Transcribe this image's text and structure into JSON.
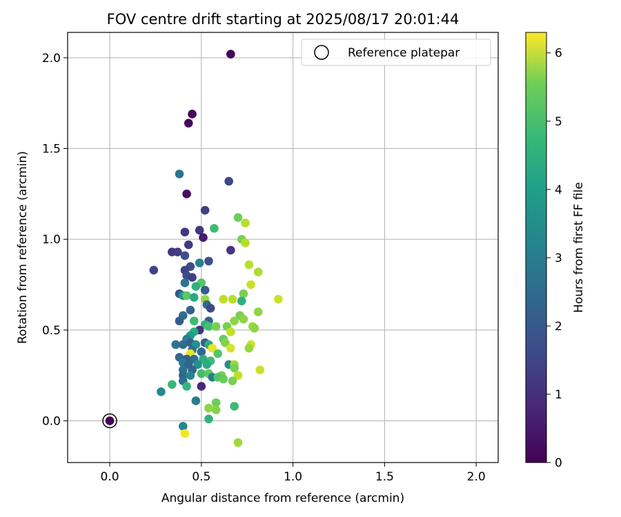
{
  "chart_data": {
    "type": "scatter",
    "title": "FOV centre drift starting at 2025/08/17 20:01:44",
    "xlabel": "Angular distance from reference (arcmin)",
    "ylabel": "Rotation from reference (arcmin)",
    "xlim": [
      -0.23,
      2.12
    ],
    "ylim": [
      -0.23,
      2.14
    ],
    "xticks": [
      0.0,
      0.5,
      1.0,
      1.5,
      2.0
    ],
    "xtick_labels": [
      "0.0",
      "0.5",
      "1.0",
      "1.5",
      "2.0"
    ],
    "yticks": [
      0.0,
      0.5,
      1.0,
      1.5,
      2.0
    ],
    "ytick_labels": [
      "0.0",
      "0.5",
      "1.0",
      "1.5",
      "2.0"
    ],
    "grid": true,
    "legend": {
      "placement": "top-right",
      "entries": [
        "Reference platepar"
      ]
    },
    "reference_point": {
      "x": 0.0,
      "y": 0.0,
      "label": "Reference platepar"
    },
    "colorbar": {
      "label": "Hours from first FF file",
      "range": [
        0,
        6.3
      ],
      "ticks": [
        0,
        1,
        2,
        3,
        4,
        5,
        6
      ],
      "tick_labels": [
        "0",
        "1",
        "2",
        "3",
        "4",
        "5",
        "6"
      ],
      "colormap": "viridis"
    },
    "points": [
      {
        "x": 0.66,
        "y": 2.02,
        "c": 0.1
      },
      {
        "x": 0.45,
        "y": 1.69,
        "c": 0.1
      },
      {
        "x": 0.43,
        "y": 1.64,
        "c": 0.1
      },
      {
        "x": 0.38,
        "y": 1.36,
        "c": 2.4
      },
      {
        "x": 0.42,
        "y": 1.25,
        "c": 0.2
      },
      {
        "x": 0.65,
        "y": 1.32,
        "c": 1.4
      },
      {
        "x": 0.52,
        "y": 1.16,
        "c": 1.2
      },
      {
        "x": 0.7,
        "y": 1.12,
        "c": 4.9
      },
      {
        "x": 0.74,
        "y": 1.09,
        "c": 5.6
      },
      {
        "x": 0.57,
        "y": 1.06,
        "c": 4.3
      },
      {
        "x": 0.41,
        "y": 1.04,
        "c": 1.0
      },
      {
        "x": 0.49,
        "y": 1.05,
        "c": 1.0
      },
      {
        "x": 0.51,
        "y": 1.01,
        "c": 0.5
      },
      {
        "x": 0.72,
        "y": 1.0,
        "c": 5.0
      },
      {
        "x": 0.74,
        "y": 0.98,
        "c": 5.6
      },
      {
        "x": 0.43,
        "y": 0.97,
        "c": 1.1
      },
      {
        "x": 0.34,
        "y": 0.93,
        "c": 1.0
      },
      {
        "x": 0.37,
        "y": 0.93,
        "c": 1.1
      },
      {
        "x": 0.66,
        "y": 0.94,
        "c": 1.0
      },
      {
        "x": 0.41,
        "y": 0.91,
        "c": 1.6
      },
      {
        "x": 0.54,
        "y": 0.88,
        "c": 1.6
      },
      {
        "x": 0.49,
        "y": 0.87,
        "c": 2.8
      },
      {
        "x": 0.76,
        "y": 0.86,
        "c": 5.6
      },
      {
        "x": 0.44,
        "y": 0.85,
        "c": 1.5
      },
      {
        "x": 0.41,
        "y": 0.83,
        "c": 1.3
      },
      {
        "x": 0.24,
        "y": 0.83,
        "c": 1.3
      },
      {
        "x": 0.81,
        "y": 0.82,
        "c": 5.5
      },
      {
        "x": 0.42,
        "y": 0.8,
        "c": 1.5
      },
      {
        "x": 0.45,
        "y": 0.79,
        "c": 1.2
      },
      {
        "x": 0.41,
        "y": 0.76,
        "c": 2.4
      },
      {
        "x": 0.5,
        "y": 0.76,
        "c": 4.6
      },
      {
        "x": 0.77,
        "y": 0.75,
        "c": 5.8
      },
      {
        "x": 0.47,
        "y": 0.74,
        "c": 4.0
      },
      {
        "x": 0.52,
        "y": 0.72,
        "c": 1.8
      },
      {
        "x": 0.38,
        "y": 0.7,
        "c": 1.7
      },
      {
        "x": 0.4,
        "y": 0.69,
        "c": 3.3
      },
      {
        "x": 0.42,
        "y": 0.69,
        "c": 4.7
      },
      {
        "x": 0.46,
        "y": 0.68,
        "c": 3.8
      },
      {
        "x": 0.73,
        "y": 0.7,
        "c": 5.0
      },
      {
        "x": 0.52,
        "y": 0.67,
        "c": 5.3
      },
      {
        "x": 0.62,
        "y": 0.67,
        "c": 5.7
      },
      {
        "x": 0.67,
        "y": 0.67,
        "c": 5.6
      },
      {
        "x": 0.92,
        "y": 0.67,
        "c": 5.8
      },
      {
        "x": 0.72,
        "y": 0.66,
        "c": 4.0
      },
      {
        "x": 0.53,
        "y": 0.64,
        "c": 2.1
      },
      {
        "x": 0.55,
        "y": 0.62,
        "c": 1.4
      },
      {
        "x": 0.44,
        "y": 0.61,
        "c": 2.0
      },
      {
        "x": 0.81,
        "y": 0.6,
        "c": 5.2
      },
      {
        "x": 0.71,
        "y": 0.58,
        "c": 5.0
      },
      {
        "x": 0.4,
        "y": 0.58,
        "c": 2.2
      },
      {
        "x": 0.38,
        "y": 0.55,
        "c": 1.8
      },
      {
        "x": 0.46,
        "y": 0.55,
        "c": 4.3
      },
      {
        "x": 0.54,
        "y": 0.55,
        "c": 2.0
      },
      {
        "x": 0.68,
        "y": 0.55,
        "c": 5.2
      },
      {
        "x": 0.73,
        "y": 0.56,
        "c": 5.2
      },
      {
        "x": 0.52,
        "y": 0.53,
        "c": 4.0
      },
      {
        "x": 0.54,
        "y": 0.52,
        "c": 4.4
      },
      {
        "x": 0.58,
        "y": 0.52,
        "c": 5.0
      },
      {
        "x": 0.64,
        "y": 0.52,
        "c": 5.0
      },
      {
        "x": 0.78,
        "y": 0.52,
        "c": 5.4
      },
      {
        "x": 0.79,
        "y": 0.51,
        "c": 5.2
      },
      {
        "x": 0.49,
        "y": 0.5,
        "c": 0.9
      },
      {
        "x": 0.46,
        "y": 0.49,
        "c": 3.8
      },
      {
        "x": 0.66,
        "y": 0.49,
        "c": 5.7
      },
      {
        "x": 0.44,
        "y": 0.47,
        "c": 3.5
      },
      {
        "x": 0.42,
        "y": 0.45,
        "c": 2.7
      },
      {
        "x": 0.62,
        "y": 0.45,
        "c": 4.8
      },
      {
        "x": 0.63,
        "y": 0.43,
        "c": 5.1
      },
      {
        "x": 0.77,
        "y": 0.42,
        "c": 5.8
      },
      {
        "x": 0.36,
        "y": 0.42,
        "c": 2.5
      },
      {
        "x": 0.4,
        "y": 0.42,
        "c": 2.2
      },
      {
        "x": 0.44,
        "y": 0.43,
        "c": 1.9
      },
      {
        "x": 0.47,
        "y": 0.42,
        "c": 3.2
      },
      {
        "x": 0.52,
        "y": 0.43,
        "c": 1.8
      },
      {
        "x": 0.54,
        "y": 0.42,
        "c": 3.9
      },
      {
        "x": 0.56,
        "y": 0.4,
        "c": 6.1
      },
      {
        "x": 0.66,
        "y": 0.4,
        "c": 5.9
      },
      {
        "x": 0.76,
        "y": 0.4,
        "c": 5.3
      },
      {
        "x": 0.45,
        "y": 0.39,
        "c": 2.4
      },
      {
        "x": 0.5,
        "y": 0.38,
        "c": 2.1
      },
      {
        "x": 0.44,
        "y": 0.37,
        "c": 6.1
      },
      {
        "x": 0.59,
        "y": 0.37,
        "c": 4.6
      },
      {
        "x": 0.38,
        "y": 0.35,
        "c": 2.2
      },
      {
        "x": 0.42,
        "y": 0.34,
        "c": 1.9
      },
      {
        "x": 0.46,
        "y": 0.34,
        "c": 2.3
      },
      {
        "x": 0.51,
        "y": 0.34,
        "c": 3.9
      },
      {
        "x": 0.55,
        "y": 0.33,
        "c": 4.3
      },
      {
        "x": 0.4,
        "y": 0.32,
        "c": 2.6
      },
      {
        "x": 0.43,
        "y": 0.31,
        "c": 2.0
      },
      {
        "x": 0.48,
        "y": 0.31,
        "c": 3.2
      },
      {
        "x": 0.53,
        "y": 0.31,
        "c": 3.9
      },
      {
        "x": 0.65,
        "y": 0.31,
        "c": 3.2
      },
      {
        "x": 0.68,
        "y": 0.31,
        "c": 5.4
      },
      {
        "x": 0.68,
        "y": 0.29,
        "c": 5.0
      },
      {
        "x": 0.4,
        "y": 0.28,
        "c": 2.4
      },
      {
        "x": 0.45,
        "y": 0.28,
        "c": 2.0
      },
      {
        "x": 0.5,
        "y": 0.26,
        "c": 4.4
      },
      {
        "x": 0.54,
        "y": 0.26,
        "c": 4.7
      },
      {
        "x": 0.61,
        "y": 0.25,
        "c": 5.0
      },
      {
        "x": 0.7,
        "y": 0.25,
        "c": 5.7
      },
      {
        "x": 0.82,
        "y": 0.28,
        "c": 5.8
      },
      {
        "x": 0.4,
        "y": 0.25,
        "c": 2.1
      },
      {
        "x": 0.44,
        "y": 0.25,
        "c": 2.9
      },
      {
        "x": 0.56,
        "y": 0.24,
        "c": 2.7
      },
      {
        "x": 0.59,
        "y": 0.24,
        "c": 4.6
      },
      {
        "x": 0.62,
        "y": 0.23,
        "c": 4.8
      },
      {
        "x": 0.67,
        "y": 0.22,
        "c": 5.0
      },
      {
        "x": 0.4,
        "y": 0.22,
        "c": 2.3
      },
      {
        "x": 0.34,
        "y": 0.2,
        "c": 4.2
      },
      {
        "x": 0.42,
        "y": 0.19,
        "c": 4.2
      },
      {
        "x": 0.5,
        "y": 0.19,
        "c": 0.7
      },
      {
        "x": 0.28,
        "y": 0.16,
        "c": 3.0
      },
      {
        "x": 0.47,
        "y": 0.11,
        "c": 2.6
      },
      {
        "x": 0.58,
        "y": 0.1,
        "c": 4.9
      },
      {
        "x": 0.54,
        "y": 0.07,
        "c": 5.2
      },
      {
        "x": 0.58,
        "y": 0.06,
        "c": 5.1
      },
      {
        "x": 0.68,
        "y": 0.08,
        "c": 4.3
      },
      {
        "x": 0.54,
        "y": 0.01,
        "c": 4.1
      },
      {
        "x": 0.4,
        "y": -0.03,
        "c": 2.9
      },
      {
        "x": 0.41,
        "y": -0.07,
        "c": 6.2
      },
      {
        "x": 0.7,
        "y": -0.12,
        "c": 5.4
      }
    ]
  }
}
